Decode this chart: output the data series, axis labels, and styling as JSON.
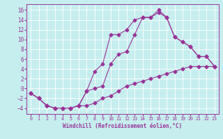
{
  "xlabel": "Windchill (Refroidissement éolien,°C)",
  "bg_color": "#c6eeee",
  "line_color": "#993399",
  "grid_color": "#ffffff",
  "xlim": [
    -0.5,
    23.5
  ],
  "ylim": [
    -5.2,
    17.2
  ],
  "xticks": [
    0,
    1,
    2,
    3,
    4,
    5,
    6,
    7,
    8,
    9,
    10,
    11,
    12,
    13,
    14,
    15,
    16,
    17,
    18,
    19,
    20,
    21,
    22,
    23
  ],
  "yticks": [
    -4,
    -2,
    0,
    2,
    4,
    6,
    8,
    10,
    12,
    14,
    16
  ],
  "line1_x": [
    0,
    1,
    2,
    3,
    4,
    5,
    6,
    7,
    8,
    9,
    10,
    11,
    12,
    13,
    14,
    15,
    16,
    17,
    18,
    19,
    20,
    21,
    22,
    23
  ],
  "line1_y": [
    -1,
    -2,
    -3.5,
    -4,
    -4,
    -4,
    -3.5,
    -3.5,
    -3,
    -2,
    -1.5,
    -0.5,
    0.5,
    1,
    1.5,
    2,
    2.5,
    3,
    3.5,
    4,
    4.5,
    4.5,
    4.5,
    4.5
  ],
  "line2_x": [
    0,
    1,
    2,
    3,
    4,
    5,
    6,
    7,
    8,
    9,
    10,
    11,
    12,
    13,
    14,
    15,
    16,
    17,
    18,
    19,
    20,
    21,
    22,
    23
  ],
  "line2_y": [
    -1,
    -2,
    -3.5,
    -4,
    -4,
    -4,
    -3.5,
    -0.5,
    0,
    0.5,
    5,
    7,
    7.5,
    11,
    14.5,
    14.5,
    15.5,
    14.5,
    10.5,
    9.5,
    8.5,
    6.5,
    6.5,
    4.5
  ],
  "line3_x": [
    0,
    1,
    2,
    3,
    4,
    5,
    6,
    7,
    8,
    9,
    10,
    11,
    12,
    13,
    14,
    15,
    16,
    17,
    18,
    19,
    20,
    21,
    22,
    23
  ],
  "line3_y": [
    -1,
    -2,
    -3.5,
    -4,
    -4,
    -4,
    -3.5,
    -0.5,
    3.5,
    5,
    11,
    11,
    12,
    14,
    14.5,
    14.5,
    16,
    14.5,
    10.5,
    9.5,
    8.5,
    6.5,
    6.5,
    4.5
  ]
}
